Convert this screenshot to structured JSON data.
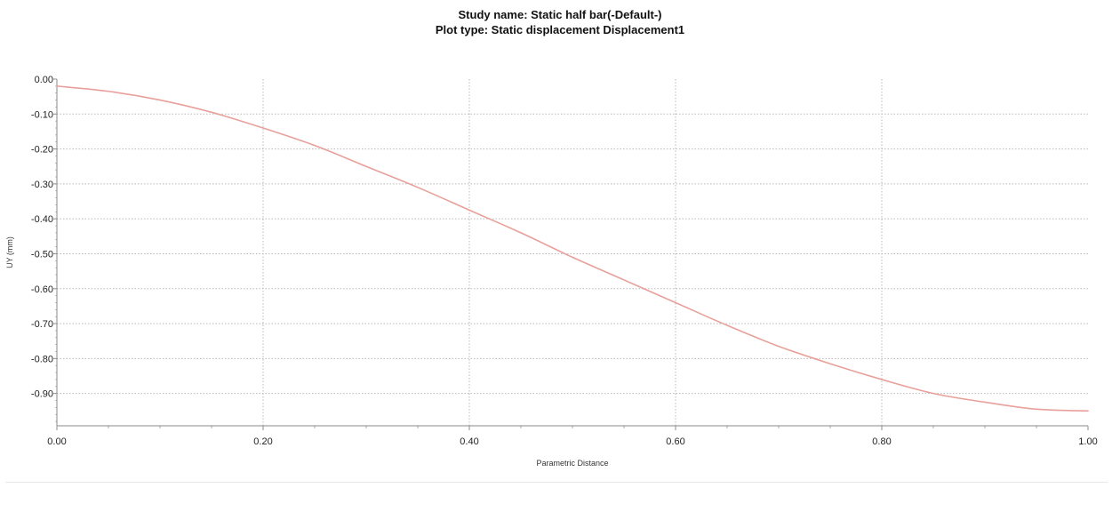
{
  "chart_data": {
    "type": "line",
    "title": "Study name: Static half bar(-Default-)",
    "subtitle": "Plot type: Static displacement Displacement1",
    "xlabel": "Parametric Distance",
    "ylabel": "UY (mm)",
    "xlim": [
      0.0,
      1.0
    ],
    "ylim": [
      -0.9925,
      0.0
    ],
    "x_ticks": [
      "0.00",
      "0.20",
      "0.40",
      "0.60",
      "0.80",
      "1.00"
    ],
    "y_ticks": [
      "0.00",
      "-0.10",
      "-0.20",
      "-0.30",
      "-0.40",
      "-0.50",
      "-0.60",
      "-0.70",
      "-0.80",
      "-0.90"
    ],
    "grid": true,
    "series": [
      {
        "color": "#e8a09a",
        "x": [
          0.0,
          0.05,
          0.1,
          0.15,
          0.2,
          0.25,
          0.3,
          0.35,
          0.4,
          0.45,
          0.5,
          0.55,
          0.6,
          0.65,
          0.7,
          0.75,
          0.8,
          0.85,
          0.9,
          0.95,
          1.0
        ],
        "y": [
          -0.02,
          -0.035,
          -0.06,
          -0.095,
          -0.14,
          -0.19,
          -0.25,
          -0.31,
          -0.375,
          -0.44,
          -0.51,
          -0.575,
          -0.64,
          -0.705,
          -0.765,
          -0.815,
          -0.86,
          -0.9,
          -0.925,
          -0.945,
          -0.95
        ]
      }
    ]
  },
  "colors": {
    "line": "#e8a09a",
    "axis": "#8a8a8a",
    "grid": "#b8b8b8",
    "minor_tick": "#9a9a9a"
  }
}
